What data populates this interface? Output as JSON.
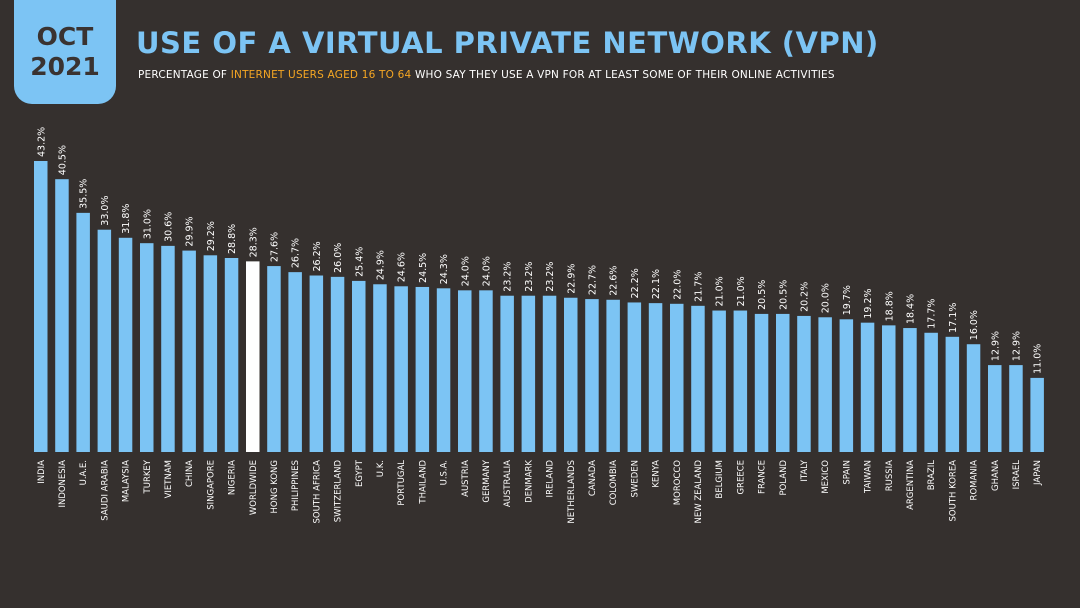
{
  "header": {
    "date_month": "OCT",
    "date_year": "2021",
    "title": "USE OF A VIRTUAL PRIVATE NETWORK (VPN)",
    "subtitle_prefix": "PERCENTAGE OF ",
    "subtitle_highlight": "INTERNET USERS AGED 16 TO 64",
    "subtitle_suffix": " WHO SAY THEY USE A VPN FOR AT LEAST SOME OF THEIR ONLINE ACTIVITIES"
  },
  "colors": {
    "background": "#35302e",
    "bar": "#7cc4f4",
    "highlight_bar": "#ffffff",
    "accent": "#f5a623"
  },
  "chart_data": {
    "type": "bar",
    "title": "USE OF A VIRTUAL PRIVATE NETWORK (VPN)",
    "xlabel": "",
    "ylabel": "",
    "ylim": [
      0,
      45
    ],
    "highlight_category": "WORLDWIDE",
    "categories": [
      "INDIA",
      "INDONESIA",
      "U.A.E.",
      "SAUDI ARABIA",
      "MALAYSIA",
      "TURKEY",
      "VIETNAM",
      "CHINA",
      "SINGAPORE",
      "NIGERIA",
      "WORLDWIDE",
      "HONG KONG",
      "PHILIPPINES",
      "SOUTH AFRICA",
      "SWITZERLAND",
      "EGYPT",
      "U.K.",
      "PORTUGAL",
      "THAILAND",
      "U.S.A.",
      "AUSTRIA",
      "GERMANY",
      "AUSTRALIA",
      "DENMARK",
      "IRELAND",
      "NETHERLANDS",
      "CANADA",
      "COLOMBIA",
      "SWEDEN",
      "KENYA",
      "MOROCCO",
      "NEW ZEALAND",
      "BELGIUM",
      "GREECE",
      "FRANCE",
      "POLAND",
      "ITALY",
      "MEXICO",
      "SPAIN",
      "TAIWAN",
      "RUSSIA",
      "ARGENTINA",
      "BRAZIL",
      "SOUTH KOREA",
      "ROMANIA",
      "GHANA",
      "ISRAEL",
      "JAPAN"
    ],
    "values": [
      43.2,
      40.5,
      35.5,
      33.0,
      31.8,
      31.0,
      30.6,
      29.9,
      29.2,
      28.8,
      28.3,
      27.6,
      26.7,
      26.2,
      26.0,
      25.4,
      24.9,
      24.6,
      24.5,
      24.3,
      24.0,
      24.0,
      23.2,
      23.2,
      23.2,
      22.9,
      22.7,
      22.6,
      22.2,
      22.1,
      22.0,
      21.7,
      21.0,
      21.0,
      20.5,
      20.5,
      20.2,
      20.0,
      19.7,
      19.2,
      18.8,
      18.4,
      17.7,
      17.1,
      16.0,
      12.9,
      12.9,
      11.0
    ],
    "labels": [
      "43.2%",
      "40.5%",
      "35.5%",
      "33.0%",
      "31.8%",
      "31.0%",
      "30.6%",
      "29.9%",
      "29.2%",
      "28.8%",
      "28.3%",
      "27.6%",
      "26.7%",
      "26.2%",
      "26.0%",
      "25.4%",
      "24.9%",
      "24.6%",
      "24.5%",
      "24.3%",
      "24.0%",
      "24.0%",
      "23.2%",
      "23.2%",
      "23.2%",
      "22.9%",
      "22.7%",
      "22.6%",
      "22.2%",
      "22.1%",
      "22.0%",
      "21.7%",
      "21.0%",
      "21.0%",
      "20.5%",
      "20.5%",
      "20.2%",
      "20.0%",
      "19.7%",
      "19.2%",
      "18.8%",
      "18.4%",
      "17.7%",
      "17.1%",
      "16.0%",
      "12.9%",
      "12.9%",
      "11.0%"
    ]
  }
}
